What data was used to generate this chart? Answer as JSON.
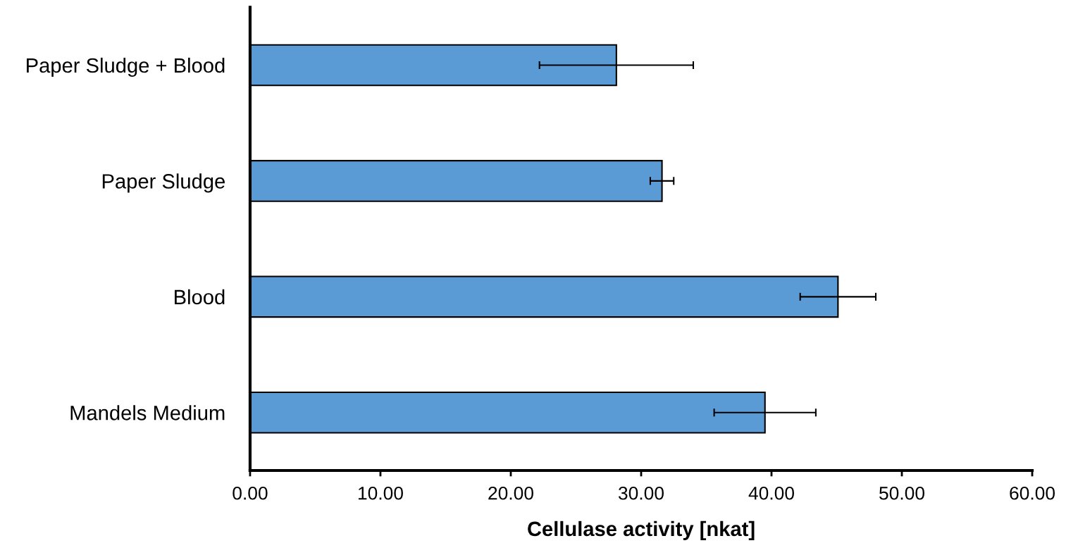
{
  "chart_data": {
    "type": "bar",
    "orientation": "horizontal",
    "xlabel": "Cellulase activity [nkat]",
    "categories": [
      "Paper Sludge + Blood",
      "Paper Sludge",
      "Blood",
      "Mandels Medium"
    ],
    "values": [
      28.1,
      31.6,
      45.1,
      39.5
    ],
    "errors": [
      5.9,
      0.9,
      2.9,
      3.9
    ],
    "color": "#5b9bd5",
    "xlim": [
      0,
      60
    ],
    "xticks": [
      {
        "value": 0,
        "label": "0.00"
      },
      {
        "value": 10,
        "label": "10.00"
      },
      {
        "value": 20,
        "label": "20.00"
      },
      {
        "value": 30,
        "label": "30.00"
      },
      {
        "value": 40,
        "label": "40.00"
      },
      {
        "value": 50,
        "label": "50.00"
      },
      {
        "value": 60,
        "label": "60.00"
      }
    ],
    "grid": false,
    "legend": false
  }
}
